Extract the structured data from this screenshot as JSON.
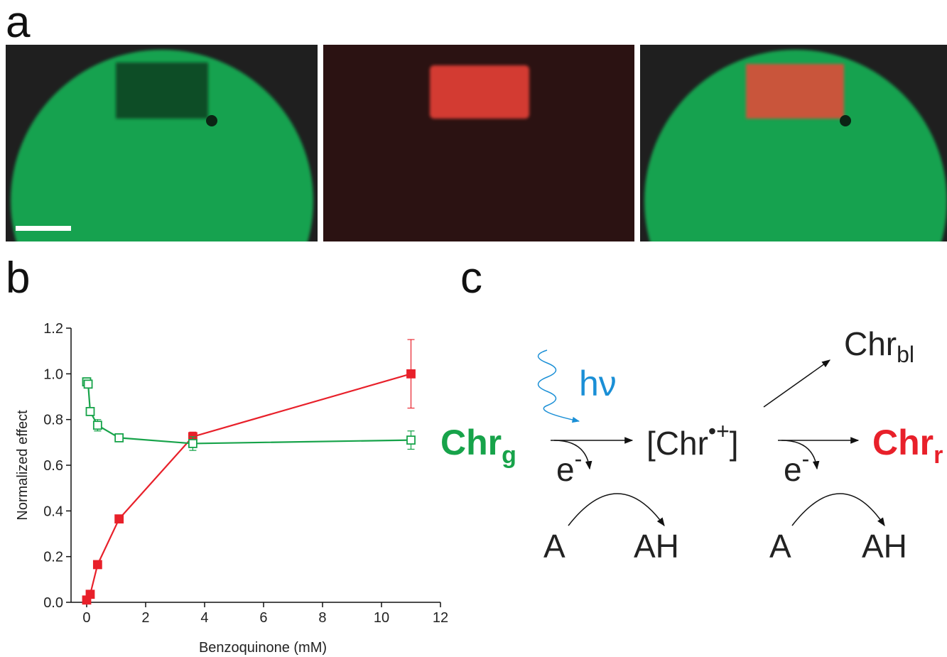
{
  "panel_labels": {
    "a": "a",
    "b": "b",
    "c": "c"
  },
  "chart_data": {
    "type": "line",
    "xlabel": "Benzoquinone (mM)",
    "ylabel": "Normalized effect",
    "xlim": [
      -0.53,
      12
    ],
    "ylim": [
      0,
      1.2
    ],
    "xticks": [
      0,
      2,
      4,
      6,
      8,
      10,
      12
    ],
    "yticks": [
      {
        "value": 0,
        "label": "0.0"
      },
      0.2,
      0.4,
      0.6,
      0.8,
      {
        "value": 1,
        "label": "1.0"
      },
      1.2
    ],
    "series": [
      {
        "color": "#e8202a",
        "filled": true,
        "x": [
          0,
          0.12,
          0.37,
          1.1,
          3.6,
          11
        ],
        "values": [
          0.01,
          0.035,
          0.165,
          0.365,
          0.725,
          1.0
        ],
        "errors": [
          0.005,
          0.008,
          0.008,
          0.008,
          0.02,
          0.15
        ]
      },
      {
        "color": "#17a34a",
        "filled": false,
        "x": [
          0,
          0.05,
          0.12,
          0.37,
          1.1,
          3.6,
          11
        ],
        "values": [
          0.965,
          0.955,
          0.835,
          0.775,
          0.72,
          0.695,
          0.71
        ],
        "errors": [
          0.01,
          0.01,
          0.01,
          0.025,
          0.015,
          0.03,
          0.04
        ]
      }
    ]
  },
  "scheme": {
    "reactant": {
      "text": "Chr",
      "subscript": "g"
    },
    "light": "hν",
    "intermediate": {
      "open": "[Chr",
      "superscript": "•+",
      "close": "]"
    },
    "product": {
      "text": "Chr",
      "subscript": "r"
    },
    "bleached": {
      "text": "Chr",
      "subscript": "bl"
    },
    "electron_1": {
      "text": "e",
      "superscript": "-"
    },
    "electron_2": {
      "text": "e",
      "superscript": "-"
    },
    "acceptor_1": "A",
    "reduced_1": "AH",
    "acceptor_2": "A",
    "reduced_2": "AH"
  }
}
